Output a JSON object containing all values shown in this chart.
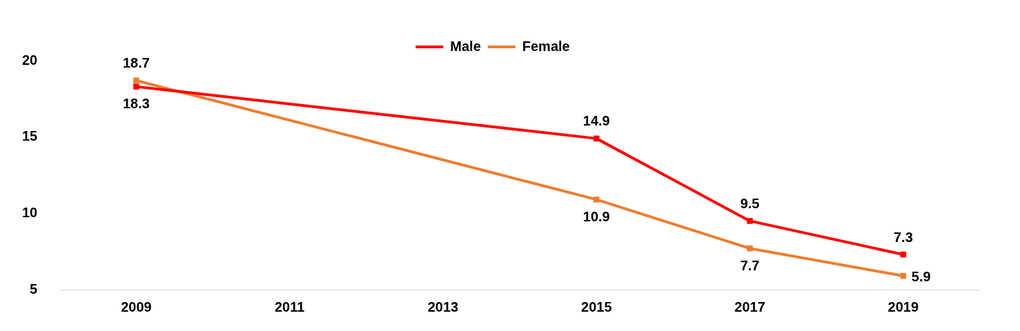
{
  "chart_data": {
    "type": "line",
    "categories": [
      "2009",
      "2011",
      "2013",
      "2015",
      "2017",
      "2019"
    ],
    "series": [
      {
        "name": "Male",
        "color": "#ff0000",
        "values": [
          18.3,
          null,
          null,
          14.9,
          9.5,
          7.3
        ]
      },
      {
        "name": "Female",
        "color": "#ed7d31",
        "values": [
          18.7,
          null,
          null,
          10.9,
          7.7,
          5.9
        ]
      }
    ],
    "ylim": [
      5,
      20
    ],
    "yticks": [
      5,
      10,
      15,
      20
    ],
    "grid": false,
    "legend": "top",
    "marker": "square",
    "line_style": "solid",
    "data_labels": true
  }
}
